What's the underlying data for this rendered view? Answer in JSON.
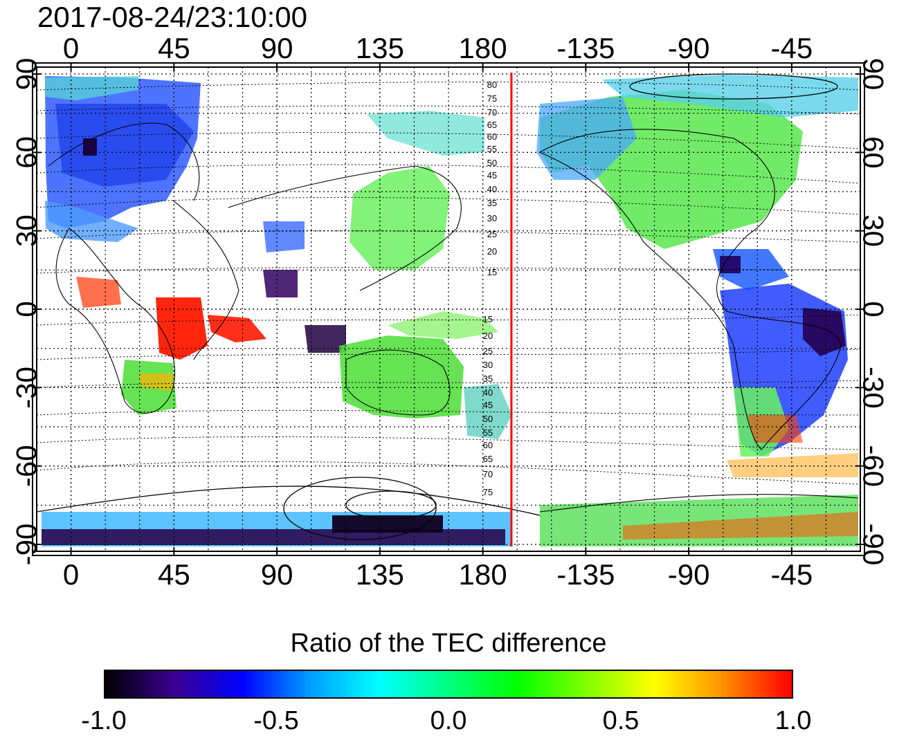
{
  "title": "2017-08-24/23:10:00",
  "longitude_ticks": [
    "0",
    "45",
    "90",
    "135",
    "180",
    "-135",
    "-90",
    "-45"
  ],
  "latitude_ticks": [
    "90",
    "60",
    "30",
    "0",
    "-30",
    "-60",
    "-90"
  ],
  "magnetic_latitude_labels_north": [
    "80",
    "75",
    "70",
    "65",
    "60",
    "55",
    "50",
    "45",
    "40",
    "35",
    "30",
    "25",
    "20",
    "15"
  ],
  "magnetic_latitude_labels_south": [
    "15",
    "20",
    "25",
    "30",
    "35",
    "40",
    "45",
    "50",
    "55",
    "60",
    "65",
    "70",
    "75"
  ],
  "terminator_longitude": -167.5,
  "colors": {
    "terminator_line": "#ff0000",
    "grid": "#000000",
    "background": "#ffffff"
  },
  "colorbar": {
    "title": "Ratio of the TEC difference",
    "min": -1.0,
    "max": 1.0,
    "tick_labels": [
      "-1.0",
      "-0.5",
      "0.0",
      "0.5",
      "1.0"
    ],
    "gradient_stops": [
      "#000000",
      "#3a0090",
      "#0000ff",
      "#00a0ff",
      "#00ffff",
      "#00ff80",
      "#00ff00",
      "#80ff00",
      "#ffff00",
      "#ff9000",
      "#ff0000"
    ]
  }
}
